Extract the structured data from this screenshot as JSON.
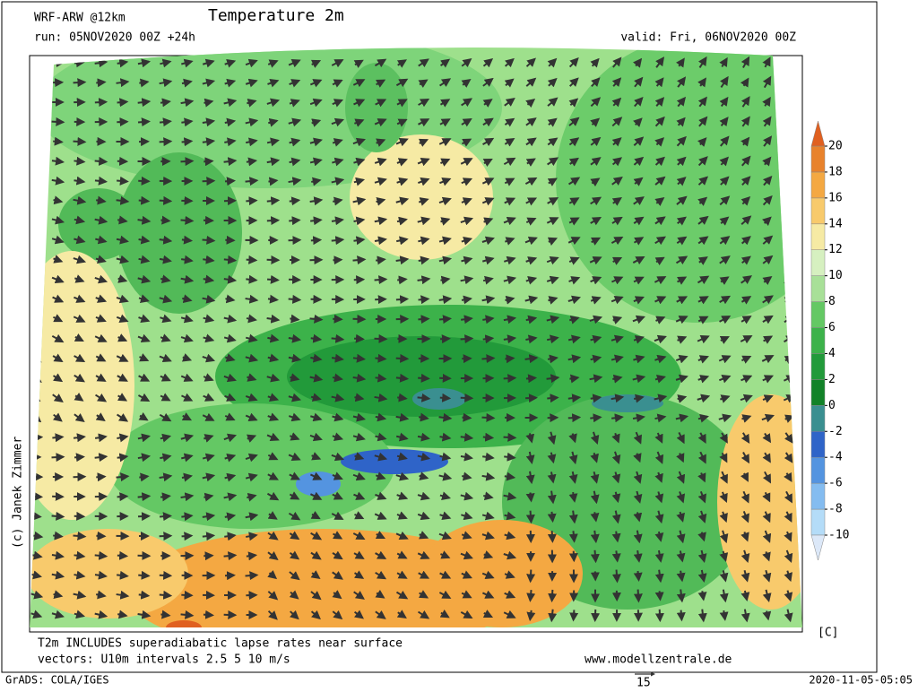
{
  "header": {
    "model": "WRF-ARW @12km",
    "title": "Temperature 2m",
    "run": "run: 05NOV2020 00Z +24h",
    "valid": "valid: Fri, 06NOV2020 00Z"
  },
  "colorbar": {
    "unit": "[C]",
    "levels": [
      -10,
      -8,
      -6,
      -4,
      -2,
      0,
      2,
      4,
      6,
      8,
      10,
      12,
      14,
      16,
      18,
      20
    ],
    "colors": [
      "#b4dcf8",
      "#84bcf0",
      "#5494e0",
      "#2f64c8",
      "#3a8f90",
      "#128228",
      "#229a3a",
      "#3cb24a",
      "#64c864",
      "#a8e098",
      "#d6f0c0",
      "#f6eaa4",
      "#f8ca6c",
      "#f4a842",
      "#e8822c"
    ],
    "under": "#dce8f8",
    "over": "#e06020"
  },
  "credit": "(c) Janek Zimmer",
  "footer": {
    "note1": "T2m INCLUDES superadiabatic lapse rates near surface",
    "note2": "vectors: U10m intervals 2.5 5 10 m/s",
    "site": "www.modellzentrale.de",
    "grads": "GrADS: COLA/IGES",
    "timestamp": "2020-11-05-05:05",
    "vector_scale": "15"
  }
}
